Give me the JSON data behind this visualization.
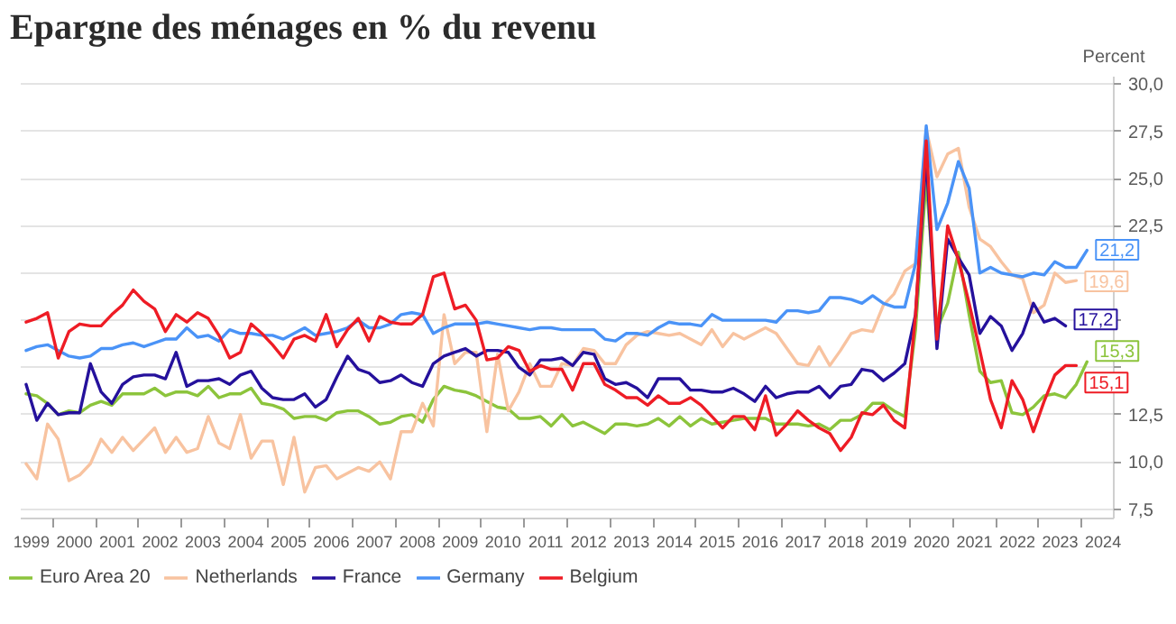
{
  "chart_data": {
    "type": "line",
    "title": "Epargne des ménages en % du revenu",
    "ylabel": "Percent",
    "x": [
      1999.375,
      1999.625,
      1999.875,
      2000.125,
      2000.375,
      2000.625,
      2000.875,
      2001.125,
      2001.375,
      2001.625,
      2001.875,
      2002.125,
      2002.375,
      2002.625,
      2002.875,
      2003.125,
      2003.375,
      2003.625,
      2003.875,
      2004.125,
      2004.375,
      2004.625,
      2004.875,
      2005.125,
      2005.375,
      2005.625,
      2005.875,
      2006.125,
      2006.375,
      2006.625,
      2006.875,
      2007.125,
      2007.375,
      2007.625,
      2007.875,
      2008.125,
      2008.375,
      2008.625,
      2008.875,
      2009.125,
      2009.375,
      2009.625,
      2009.875,
      2010.125,
      2010.375,
      2010.625,
      2010.875,
      2011.125,
      2011.375,
      2011.625,
      2011.875,
      2012.125,
      2012.375,
      2012.625,
      2012.875,
      2013.125,
      2013.375,
      2013.625,
      2013.875,
      2014.125,
      2014.375,
      2014.625,
      2014.875,
      2015.125,
      2015.375,
      2015.625,
      2015.875,
      2016.125,
      2016.375,
      2016.625,
      2016.875,
      2017.125,
      2017.375,
      2017.625,
      2017.875,
      2018.125,
      2018.375,
      2018.625,
      2018.875,
      2019.125,
      2019.375,
      2019.625,
      2019.875,
      2020.125,
      2020.375,
      2020.625,
      2020.875,
      2021.125,
      2021.375,
      2021.625,
      2021.875,
      2022.125,
      2022.375,
      2022.625,
      2022.875,
      2023.125,
      2023.375,
      2023.625,
      2023.875,
      2024.125
    ],
    "xlim": [
      1999.25,
      2024.75
    ],
    "xticks": [
      {
        "value": 1999.5,
        "label": "1999"
      },
      {
        "value": 2000.5,
        "label": "2000"
      },
      {
        "value": 2001.5,
        "label": "2001"
      },
      {
        "value": 2002.5,
        "label": "2002"
      },
      {
        "value": 2003.5,
        "label": "2003"
      },
      {
        "value": 2004.5,
        "label": "2004"
      },
      {
        "value": 2005.5,
        "label": "2005"
      },
      {
        "value": 2006.5,
        "label": "2006"
      },
      {
        "value": 2007.5,
        "label": "2007"
      },
      {
        "value": 2008.5,
        "label": "2008"
      },
      {
        "value": 2009.5,
        "label": "2009"
      },
      {
        "value": 2010.5,
        "label": "2010"
      },
      {
        "value": 2011.5,
        "label": "2011"
      },
      {
        "value": 2012.5,
        "label": "2012"
      },
      {
        "value": 2013.5,
        "label": "2013"
      },
      {
        "value": 2014.5,
        "label": "2014"
      },
      {
        "value": 2015.5,
        "label": "2015"
      },
      {
        "value": 2016.5,
        "label": "2016"
      },
      {
        "value": 2017.5,
        "label": "2017"
      },
      {
        "value": 2018.5,
        "label": "2018"
      },
      {
        "value": 2019.5,
        "label": "2019"
      },
      {
        "value": 2020.5,
        "label": "2020"
      },
      {
        "value": 2021.5,
        "label": "2021"
      },
      {
        "value": 2022.5,
        "label": "2022"
      },
      {
        "value": 2023.5,
        "label": "2023"
      },
      {
        "value": 2024.5,
        "label": "2024"
      },
      {
        "value": 2000,
        "label": null
      },
      {
        "value": 2001,
        "label": null
      },
      {
        "value": 2002,
        "label": null
      },
      {
        "value": 2003,
        "label": null
      },
      {
        "value": 2004,
        "label": null
      },
      {
        "value": 2005,
        "label": null
      },
      {
        "value": 2006,
        "label": null
      },
      {
        "value": 2007,
        "label": null
      },
      {
        "value": 2008,
        "label": null
      },
      {
        "value": 2009,
        "label": null
      },
      {
        "value": 2010,
        "label": null
      },
      {
        "value": 2011,
        "label": null
      },
      {
        "value": 2012,
        "label": null
      },
      {
        "value": 2013,
        "label": null
      },
      {
        "value": 2014,
        "label": null
      },
      {
        "value": 2015,
        "label": null
      },
      {
        "value": 2016,
        "label": null
      },
      {
        "value": 2017,
        "label": null
      },
      {
        "value": 2018,
        "label": null
      },
      {
        "value": 2019,
        "label": null
      },
      {
        "value": 2020,
        "label": null
      },
      {
        "value": 2021,
        "label": null
      },
      {
        "value": 2022,
        "label": null
      },
      {
        "value": 2023,
        "label": null
      },
      {
        "value": 2024,
        "label": null
      }
    ],
    "ylim": [
      7.0,
      30.4
    ],
    "yticks": [
      {
        "value": 7.5,
        "label": "7,5"
      },
      {
        "value": 10,
        "label": "10,0"
      },
      {
        "value": 12.5,
        "label": "12,5"
      },
      {
        "value": 15,
        "label": null
      },
      {
        "value": 17.5,
        "label": null
      },
      {
        "value": 20,
        "label": null
      },
      {
        "value": 22.5,
        "label": "22,5"
      },
      {
        "value": 25,
        "label": "25,0"
      },
      {
        "value": 27.5,
        "label": "27,5"
      },
      {
        "value": 30,
        "label": "30,0"
      }
    ],
    "grid": "y",
    "legend": "bottom",
    "line_style": "solid",
    "series": [
      {
        "name": "Euro Area 20",
        "color": "#8cc43c",
        "values": [
          13.6,
          13.5,
          13.1,
          12.5,
          12.7,
          12.6,
          13.0,
          13.2,
          13.0,
          13.6,
          13.6,
          13.6,
          13.9,
          13.5,
          13.7,
          13.7,
          13.5,
          14.0,
          13.4,
          13.6,
          13.6,
          13.9,
          13.1,
          13.0,
          12.8,
          12.3,
          12.4,
          12.4,
          12.2,
          12.6,
          12.7,
          12.7,
          12.4,
          12.0,
          12.1,
          12.4,
          12.5,
          12.1,
          13.3,
          14.0,
          13.8,
          13.7,
          13.5,
          13.2,
          12.9,
          12.8,
          12.3,
          12.3,
          12.4,
          11.9,
          12.5,
          11.9,
          12.1,
          11.8,
          11.5,
          12.0,
          12.0,
          11.9,
          12.0,
          12.3,
          11.9,
          12.4,
          11.9,
          12.3,
          12.0,
          12.1,
          12.2,
          12.3,
          12.3,
          12.3,
          12.0,
          12.0,
          12.0,
          11.9,
          12.0,
          11.7,
          12.2,
          12.2,
          12.5,
          13.1,
          13.1,
          12.7,
          12.4,
          17.0,
          25.0,
          17.0,
          18.4,
          21.1,
          17.8,
          14.8,
          14.2,
          14.3,
          12.6,
          12.5,
          12.9,
          13.5,
          13.6,
          13.4,
          14.1,
          15.3
        ],
        "value_labels": [
          null,
          null,
          null,
          null,
          null,
          null,
          null,
          null,
          null,
          null,
          null,
          null,
          null,
          null,
          null,
          null,
          null,
          null,
          null,
          null,
          null,
          null,
          null,
          null,
          null,
          null,
          null,
          null,
          null,
          null,
          null,
          null,
          null,
          null,
          null,
          null,
          null,
          null,
          null,
          null,
          null,
          null,
          null,
          null,
          null,
          null,
          null,
          null,
          null,
          null,
          null,
          null,
          null,
          null,
          null,
          null,
          null,
          null,
          null,
          null,
          null,
          null,
          null,
          null,
          null,
          null,
          null,
          null,
          null,
          null,
          null,
          null,
          null,
          null,
          null,
          null,
          null,
          null,
          null,
          null,
          null,
          null,
          null,
          null,
          null,
          null,
          null,
          null,
          null,
          null,
          null,
          null,
          null,
          null,
          null,
          null,
          null,
          null,
          null,
          "15,3"
        ]
      },
      {
        "name": "Netherlands",
        "color": "#f8c3a0",
        "values": [
          9.9,
          9.1,
          12.0,
          11.2,
          9.0,
          9.3,
          9.9,
          11.2,
          10.5,
          11.3,
          10.6,
          11.2,
          11.8,
          10.5,
          11.3,
          10.5,
          10.7,
          12.4,
          11.0,
          10.7,
          12.5,
          10.2,
          11.1,
          11.1,
          8.8,
          11.3,
          8.4,
          9.7,
          9.8,
          9.1,
          9.4,
          9.7,
          9.5,
          10.0,
          9.1,
          11.6,
          11.6,
          13.1,
          11.9,
          17.8,
          15.2,
          15.8,
          15.8,
          11.6,
          15.7,
          12.7,
          13.7,
          15.2,
          14.0,
          14.0,
          15.2,
          15.1,
          16.0,
          15.9,
          15.2,
          15.2,
          16.2,
          16.7,
          16.9,
          16.8,
          16.7,
          16.8,
          16.5,
          16.2,
          17.0,
          16.1,
          16.8,
          16.5,
          16.8,
          17.1,
          16.8,
          16.0,
          15.2,
          15.1,
          16.1,
          15.1,
          15.9,
          16.8,
          17.0,
          16.9,
          18.3,
          18.9,
          20.1,
          20.5,
          27.6,
          25.1,
          26.3,
          26.6,
          23.5,
          21.8,
          21.4,
          20.6,
          19.9,
          19.7,
          17.9,
          18.3,
          20.0,
          19.5,
          19.6,
          null
        ],
        "value_labels": [
          null,
          null,
          null,
          null,
          null,
          null,
          null,
          null,
          null,
          null,
          null,
          null,
          null,
          null,
          null,
          null,
          null,
          null,
          null,
          null,
          null,
          null,
          null,
          null,
          null,
          null,
          null,
          null,
          null,
          null,
          null,
          null,
          null,
          null,
          null,
          null,
          null,
          null,
          null,
          null,
          null,
          null,
          null,
          null,
          null,
          null,
          null,
          null,
          null,
          null,
          null,
          null,
          null,
          null,
          null,
          null,
          null,
          null,
          null,
          null,
          null,
          null,
          null,
          null,
          null,
          null,
          null,
          null,
          null,
          null,
          null,
          null,
          null,
          null,
          null,
          null,
          null,
          null,
          null,
          null,
          null,
          null,
          null,
          null,
          null,
          null,
          null,
          null,
          null,
          null,
          null,
          null,
          null,
          null,
          null,
          null,
          null,
          null,
          "19,6",
          null
        ]
      },
      {
        "name": "France",
        "color": "#25119c",
        "values": [
          14.1,
          12.2,
          13.1,
          12.5,
          12.6,
          12.6,
          15.2,
          13.7,
          13.1,
          14.1,
          14.5,
          14.6,
          14.6,
          14.4,
          15.8,
          14.0,
          14.3,
          14.3,
          14.4,
          14.1,
          14.6,
          14.8,
          13.9,
          13.4,
          13.3,
          13.3,
          13.6,
          12.9,
          13.3,
          14.5,
          15.6,
          14.9,
          14.7,
          14.2,
          14.3,
          14.6,
          14.2,
          14.0,
          15.2,
          15.6,
          15.8,
          16.0,
          15.6,
          15.9,
          15.9,
          15.8,
          15.0,
          14.6,
          15.4,
          15.4,
          15.5,
          15.1,
          15.8,
          15.7,
          14.4,
          14.1,
          14.2,
          13.9,
          13.4,
          14.4,
          14.4,
          14.4,
          13.8,
          13.8,
          13.7,
          13.7,
          13.9,
          13.6,
          13.2,
          14.0,
          13.4,
          13.6,
          13.7,
          13.7,
          14.0,
          13.4,
          14.0,
          14.1,
          14.9,
          14.8,
          14.3,
          14.7,
          15.2,
          17.8,
          26.2,
          16.0,
          21.8,
          20.8,
          19.9,
          16.8,
          17.7,
          17.2,
          15.9,
          16.8,
          18.4,
          17.4,
          17.6,
          17.2,
          null,
          null
        ],
        "value_labels": [
          null,
          null,
          null,
          null,
          null,
          null,
          null,
          null,
          null,
          null,
          null,
          null,
          null,
          null,
          null,
          null,
          null,
          null,
          null,
          null,
          null,
          null,
          null,
          null,
          null,
          null,
          null,
          null,
          null,
          null,
          null,
          null,
          null,
          null,
          null,
          null,
          null,
          null,
          null,
          null,
          null,
          null,
          null,
          null,
          null,
          null,
          null,
          null,
          null,
          null,
          null,
          null,
          null,
          null,
          null,
          null,
          null,
          null,
          null,
          null,
          null,
          null,
          null,
          null,
          null,
          null,
          null,
          null,
          null,
          null,
          null,
          null,
          null,
          null,
          null,
          null,
          null,
          null,
          null,
          null,
          null,
          null,
          null,
          null,
          null,
          null,
          null,
          null,
          null,
          null,
          null,
          null,
          null,
          null,
          null,
          null,
          null,
          "17,2",
          null,
          null
        ]
      },
      {
        "name": "Germany",
        "color": "#4a93f7",
        "values": [
          15.9,
          16.1,
          16.2,
          15.9,
          15.6,
          15.5,
          15.6,
          16.0,
          16.0,
          16.2,
          16.3,
          16.1,
          16.3,
          16.5,
          16.5,
          17.1,
          16.6,
          16.7,
          16.4,
          17.0,
          16.8,
          16.8,
          16.7,
          16.7,
          16.5,
          16.8,
          17.1,
          16.7,
          16.8,
          16.9,
          17.1,
          17.5,
          17.1,
          17.1,
          17.3,
          17.8,
          17.9,
          17.8,
          16.8,
          17.1,
          17.3,
          17.3,
          17.3,
          17.4,
          17.3,
          17.2,
          17.1,
          17.0,
          17.1,
          17.1,
          17.0,
          17.0,
          17.0,
          17.0,
          16.5,
          16.4,
          16.8,
          16.8,
          16.7,
          17.1,
          17.4,
          17.3,
          17.3,
          17.2,
          17.8,
          17.5,
          17.5,
          17.5,
          17.5,
          17.5,
          17.4,
          18.0,
          18.0,
          17.9,
          18.0,
          18.7,
          18.7,
          18.6,
          18.4,
          18.8,
          18.4,
          18.2,
          18.2,
          20.5,
          27.8,
          22.3,
          23.7,
          25.9,
          24.5,
          20.0,
          20.3,
          20.0,
          19.9,
          19.8,
          20.0,
          19.9,
          20.6,
          20.3,
          20.3,
          21.2
        ],
        "value_labels": [
          null,
          null,
          null,
          null,
          null,
          null,
          null,
          null,
          null,
          null,
          null,
          null,
          null,
          null,
          null,
          null,
          null,
          null,
          null,
          null,
          null,
          null,
          null,
          null,
          null,
          null,
          null,
          null,
          null,
          null,
          null,
          null,
          null,
          null,
          null,
          null,
          null,
          null,
          null,
          null,
          null,
          null,
          null,
          null,
          null,
          null,
          null,
          null,
          null,
          null,
          null,
          null,
          null,
          null,
          null,
          null,
          null,
          null,
          null,
          null,
          null,
          null,
          null,
          null,
          null,
          null,
          null,
          null,
          null,
          null,
          null,
          null,
          null,
          null,
          null,
          null,
          null,
          null,
          null,
          null,
          null,
          null,
          null,
          null,
          null,
          null,
          null,
          null,
          null,
          null,
          null,
          null,
          null,
          null,
          null,
          null,
          null,
          null,
          null,
          "21,2"
        ]
      },
      {
        "name": "Belgium",
        "color": "#ee1c25",
        "values": [
          17.4,
          17.6,
          17.9,
          15.5,
          16.9,
          17.3,
          17.2,
          17.2,
          17.8,
          18.3,
          19.1,
          18.5,
          18.1,
          16.9,
          17.8,
          17.4,
          17.9,
          17.6,
          16.7,
          15.5,
          15.8,
          17.3,
          16.8,
          16.2,
          15.5,
          16.5,
          16.7,
          16.4,
          17.8,
          16.1,
          17.0,
          17.6,
          16.4,
          17.7,
          17.4,
          17.3,
          17.3,
          17.8,
          19.8,
          20.0,
          18.1,
          18.3,
          17.5,
          15.4,
          15.5,
          16.1,
          15.9,
          14.8,
          15.1,
          14.9,
          14.9,
          13.8,
          15.2,
          15.2,
          14.1,
          13.8,
          13.4,
          13.4,
          13.0,
          13.5,
          13.1,
          13.1,
          13.4,
          13.0,
          12.4,
          11.8,
          12.4,
          12.4,
          11.7,
          13.5,
          11.4,
          12.0,
          12.7,
          12.2,
          11.8,
          11.5,
          10.6,
          11.3,
          12.6,
          12.5,
          13.0,
          12.2,
          11.8,
          17.8,
          27.0,
          16.5,
          22.5,
          20.7,
          18.4,
          15.9,
          13.3,
          11.8,
          14.3,
          13.3,
          11.6,
          13.2,
          14.6,
          15.1,
          15.1,
          null
        ],
        "value_labels": [
          null,
          null,
          null,
          null,
          null,
          null,
          null,
          null,
          null,
          null,
          null,
          null,
          null,
          null,
          null,
          null,
          null,
          null,
          null,
          null,
          null,
          null,
          null,
          null,
          null,
          null,
          null,
          null,
          null,
          null,
          null,
          null,
          null,
          null,
          null,
          null,
          null,
          null,
          null,
          null,
          null,
          null,
          null,
          null,
          null,
          null,
          null,
          null,
          null,
          null,
          null,
          null,
          null,
          null,
          null,
          null,
          null,
          null,
          null,
          null,
          null,
          null,
          null,
          null,
          null,
          null,
          null,
          null,
          null,
          null,
          null,
          null,
          null,
          null,
          null,
          null,
          null,
          null,
          null,
          null,
          null,
          null,
          null,
          null,
          null,
          null,
          null,
          null,
          null,
          null,
          null,
          null,
          null,
          null,
          null,
          null,
          null,
          null,
          "15,1",
          null
        ]
      }
    ]
  }
}
